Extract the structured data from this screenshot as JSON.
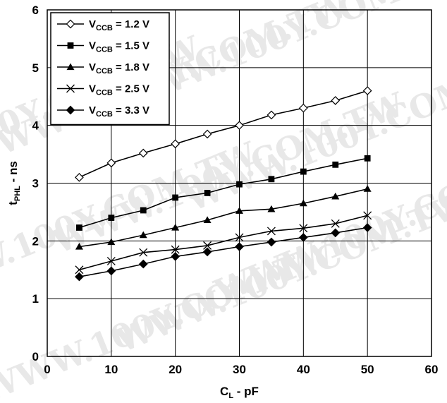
{
  "chart_data": {
    "type": "line",
    "title": "",
    "xlabel": {
      "main": "C",
      "sub": "L",
      "rest": " - pF"
    },
    "ylabel": {
      "main": "t",
      "sub": "PHL",
      "rest": " - ns"
    },
    "xlim": [
      0,
      60
    ],
    "ylim": [
      0,
      6
    ],
    "xticks": [
      "0",
      "10",
      "20",
      "30",
      "40",
      "50",
      "60"
    ],
    "yticks": [
      "0",
      "1",
      "2",
      "3",
      "4",
      "5",
      "6"
    ],
    "grid": true,
    "legend_position": "top-left",
    "watermark": "WWW.100Y.COM.TW",
    "x": [
      5,
      10,
      15,
      20,
      25,
      30,
      35,
      40,
      45,
      50
    ],
    "series": [
      {
        "name": {
          "main": "V",
          "sub": "CCB",
          "rest": " = 1.2 V"
        },
        "marker": "diamond-open",
        "values": [
          3.1,
          3.35,
          3.52,
          3.68,
          3.85,
          4.0,
          4.18,
          4.3,
          4.43,
          4.6
        ]
      },
      {
        "name": {
          "main": "V",
          "sub": "CCB",
          "rest": " = 1.5 V"
        },
        "marker": "square",
        "values": [
          2.23,
          2.4,
          2.53,
          2.75,
          2.83,
          2.98,
          3.07,
          3.2,
          3.32,
          3.43
        ]
      },
      {
        "name": {
          "main": "V",
          "sub": "CCB",
          "rest": " = 1.8 V"
        },
        "marker": "triangle",
        "values": [
          1.9,
          1.98,
          2.1,
          2.23,
          2.36,
          2.52,
          2.55,
          2.65,
          2.77,
          2.9
        ]
      },
      {
        "name": {
          "main": "V",
          "sub": "CCB",
          "rest": " = 2.5 V"
        },
        "marker": "x",
        "values": [
          1.5,
          1.65,
          1.8,
          1.85,
          1.92,
          2.06,
          2.17,
          2.22,
          2.3,
          2.44
        ]
      },
      {
        "name": {
          "main": "V",
          "sub": "CCB",
          "rest": " = 3.3 V"
        },
        "marker": "diamond",
        "values": [
          1.38,
          1.48,
          1.6,
          1.73,
          1.81,
          1.9,
          1.98,
          2.06,
          2.14,
          2.23
        ]
      }
    ]
  }
}
